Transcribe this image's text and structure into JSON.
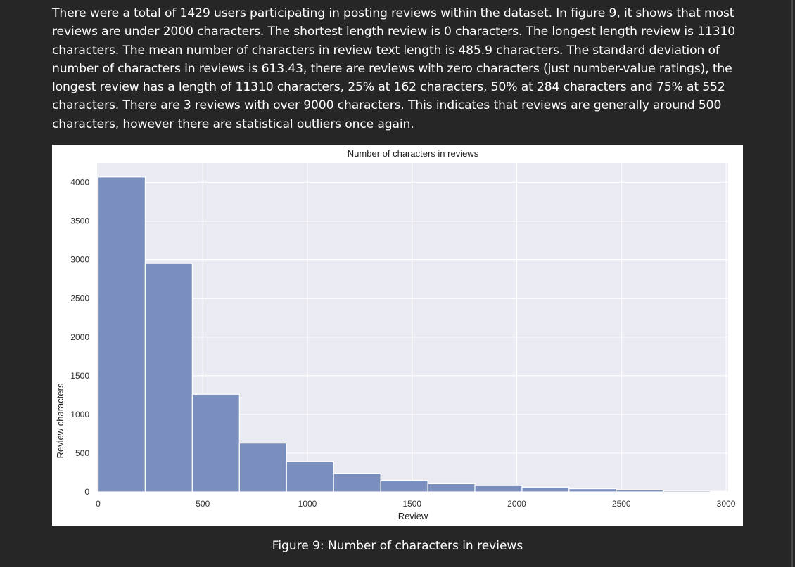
{
  "paragraph": "There were a total of 1429 users participating in posting reviews within the dataset. In figure 9, it shows that most reviews are under 2000 characters. The shortest length review is 0 characters. The longest length review is 11310 characters. The mean number of characters in review text length is 485.9 characters. The standard deviation of number of characters in reviews is 613.43, there are reviews with zero characters (just number-value ratings), the longest review has a length of 11310 characters, 25% at 162 characters, 50% at 284 characters and 75% at 552 characters. There are 3 reviews with over 9000 characters. This indicates that reviews are generally around 500 characters, however there are statistical outliers once again.",
  "caption": "Figure 9: Number of characters in reviews",
  "colors": {
    "page_background": "#262626",
    "plot_background": "#eaeaf2",
    "bar_fill": "#7a8fbd",
    "text": "#ffffff"
  },
  "chart_data": {
    "type": "bar",
    "title": "Number of characters in reviews",
    "xlabel": "Review",
    "ylabel": "Review characters",
    "xlim": [
      -5,
      3010
    ],
    "ylim": [
      0,
      4250
    ],
    "x_ticks": [
      0,
      500,
      1000,
      1500,
      2000,
      2500,
      3000
    ],
    "x_tick_labels": [
      "0",
      "500",
      "1000",
      "1500",
      "2000",
      "2500",
      "3000"
    ],
    "y_ticks": [
      0,
      500,
      1000,
      1500,
      2000,
      2500,
      3000,
      3500,
      4000
    ],
    "y_tick_labels": [
      "0",
      "500",
      "1000",
      "1500",
      "2000",
      "2500",
      "3000",
      "3500",
      "4000"
    ],
    "grid": true,
    "bin_edges": [
      0,
      225,
      450,
      675,
      900,
      1125,
      1350,
      1575,
      1800,
      2025,
      2250,
      2475,
      2700,
      2925,
      3000
    ],
    "values": [
      4070,
      2950,
      1260,
      630,
      390,
      240,
      150,
      105,
      80,
      60,
      40,
      25,
      15,
      8
    ]
  }
}
